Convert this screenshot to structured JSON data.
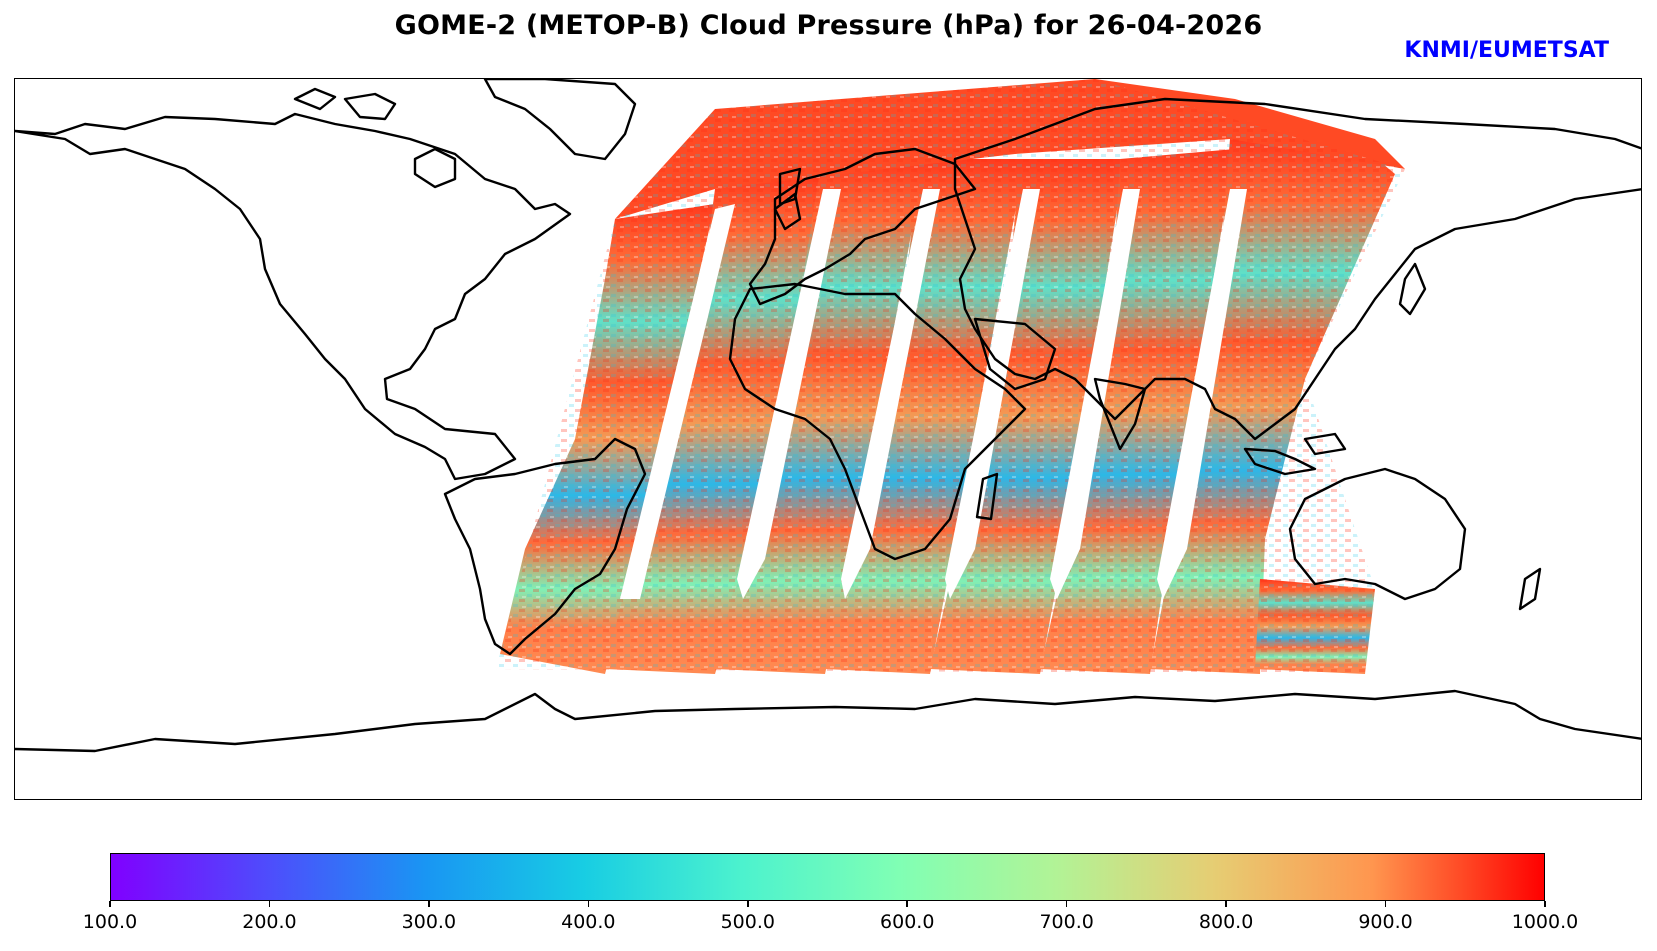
{
  "title": "GOME-2 (METOP-B) Cloud Pressure (hPa) for 26-04-2026",
  "credit": "KNMI/EUMETSAT",
  "colorbar": {
    "min": 100.0,
    "max": 1000.0,
    "ticks": [
      "100.0",
      "200.0",
      "300.0",
      "400.0",
      "500.0",
      "600.0",
      "700.0",
      "800.0",
      "900.0",
      "1000.0"
    ],
    "colormap": "rainbow"
  },
  "map": {
    "projection": "plate-carree",
    "coverage": "seven orbit swaths from South America / Atlantic across Africa, Europe, Asia to Australia / West Pacific",
    "background": "#ffffff",
    "coast_color": "#000000"
  },
  "colors": {
    "accent_blue": "#0000ff",
    "low_pressure": "#8000ff",
    "high_pressure": "#ff0000"
  }
}
